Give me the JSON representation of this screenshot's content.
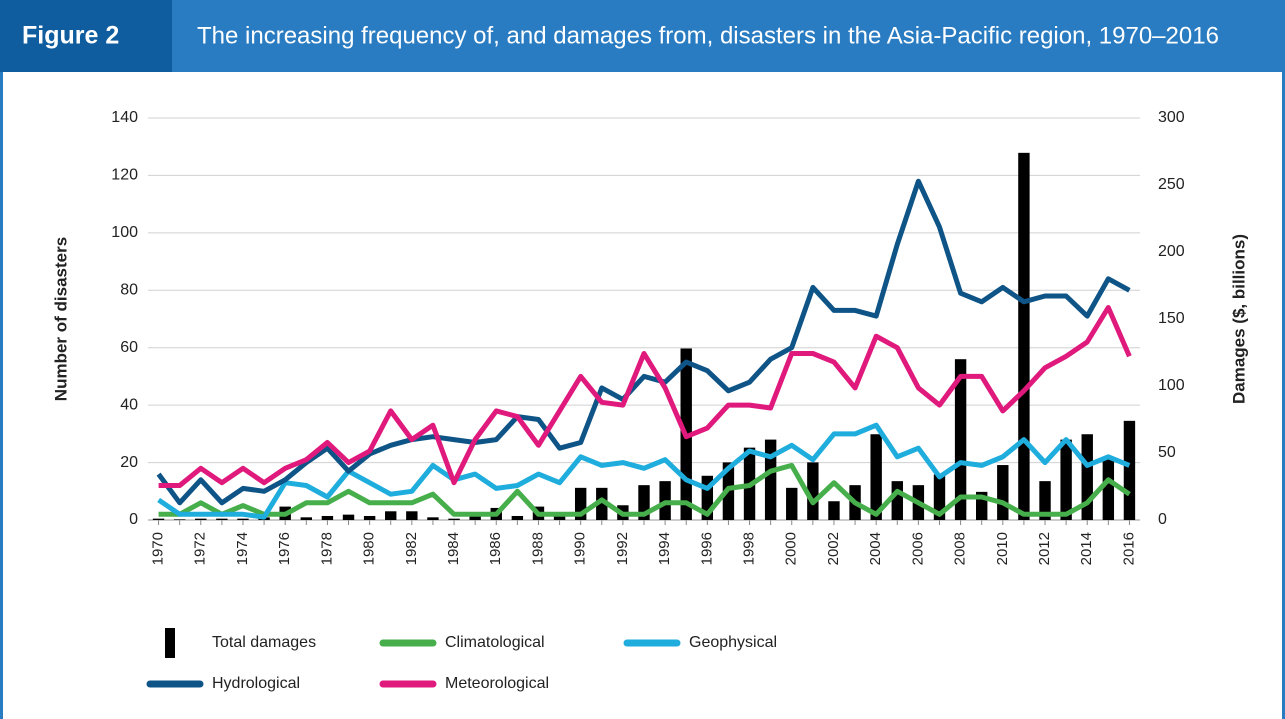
{
  "chart_data": {
    "type": "line",
    "figure_label": "Figure 2",
    "title": "The increasing frequency of, and damages from, disasters in the Asia-Pacific region, 1970–2016",
    "ylabel": "Number of disasters",
    "y2label": "Damages ($, billions)",
    "categories": [
      "1970",
      null,
      "1972",
      null,
      "1974",
      null,
      "1976",
      null,
      "1978",
      null,
      "1980",
      null,
      "1982",
      null,
      "1984",
      null,
      "1986",
      null,
      "1988",
      null,
      "1990",
      null,
      "1992",
      null,
      "1994",
      null,
      "1996",
      null,
      "1998",
      null,
      "2000",
      null,
      "2002",
      null,
      "2004",
      null,
      "2006",
      null,
      "2008",
      null,
      "2010",
      null,
      "2012",
      null,
      "2014",
      null,
      "2016"
    ],
    "ylim": [
      0,
      140
    ],
    "yticks": [
      0,
      20,
      40,
      60,
      80,
      100,
      120,
      140
    ],
    "y2lim": [
      0,
      300
    ],
    "y2ticks": [
      0,
      50,
      100,
      150,
      200,
      250,
      300
    ],
    "grid": true,
    "series": [
      {
        "name": "Total damages",
        "type": "bar",
        "axis": "y2",
        "color": "#000000",
        "values": [
          1,
          0.5,
          1,
          1,
          1,
          2,
          10,
          2,
          3,
          4,
          3,
          6.5,
          6.5,
          2,
          1,
          3,
          9,
          3,
          10,
          3,
          24,
          24,
          11,
          26,
          29,
          128,
          33,
          43,
          54,
          60,
          24,
          43,
          14,
          26,
          64,
          29,
          26,
          34,
          120,
          21,
          41,
          274,
          29,
          60,
          64,
          47,
          74
        ]
      },
      {
        "name": "Climatological",
        "type": "line",
        "color": "#46ae4a",
        "values": [
          2,
          2,
          6,
          2,
          5,
          2,
          2,
          6,
          6,
          10,
          6,
          6,
          6,
          9,
          2,
          2,
          2,
          10,
          2,
          2,
          2,
          7,
          2,
          2,
          6,
          6,
          2,
          11,
          12,
          17,
          19,
          6,
          13,
          6,
          2,
          10,
          6,
          2,
          8,
          8,
          6,
          2,
          2,
          2,
          6,
          14,
          9
        ]
      },
      {
        "name": "Geophysical",
        "type": "line",
        "color": "#1eaddc",
        "values": [
          7,
          2,
          2,
          2,
          2,
          1,
          13,
          12,
          8,
          17,
          13,
          9,
          10,
          19,
          14,
          16,
          11,
          12,
          16,
          13,
          22,
          19,
          20,
          18,
          21,
          14,
          11,
          18,
          24,
          22,
          26,
          21,
          30,
          30,
          33,
          22,
          25,
          15,
          20,
          19,
          22,
          28,
          20,
          28,
          19,
          22,
          19
        ]
      },
      {
        "name": "Hydrological",
        "type": "line",
        "color": "#0e5487",
        "values": [
          16,
          6,
          14,
          6,
          11,
          10,
          14,
          20,
          25,
          17,
          23,
          26,
          28,
          29,
          28,
          27,
          28,
          36,
          35,
          25,
          27,
          46,
          42,
          50,
          48,
          55,
          52,
          45,
          48,
          56,
          60,
          81,
          73,
          73,
          71,
          96,
          118,
          102,
          79,
          76,
          81,
          76,
          78,
          78,
          71,
          84,
          80
        ]
      },
      {
        "name": "Meteorological",
        "type": "line",
        "color": "#e0197d",
        "values": [
          12,
          12,
          18,
          13,
          18,
          13,
          18,
          21,
          27,
          20,
          24,
          38,
          28,
          33,
          13,
          28,
          38,
          36,
          26,
          38,
          50,
          41,
          40,
          58,
          46,
          29,
          32,
          40,
          40,
          39,
          58,
          58,
          55,
          46,
          64,
          60,
          46,
          40,
          50,
          50,
          38,
          45,
          53,
          57,
          62,
          74,
          57
        ]
      }
    ]
  }
}
